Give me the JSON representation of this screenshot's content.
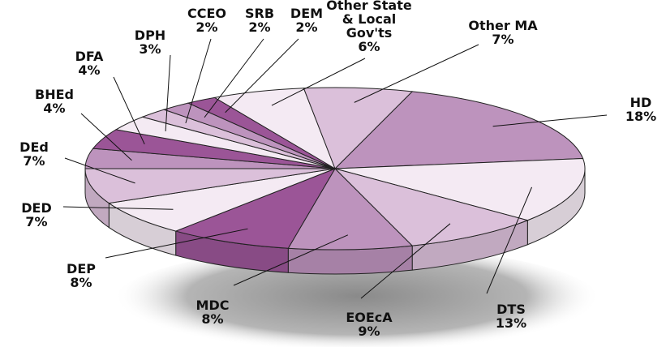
{
  "chart_data": {
    "type": "pie3d",
    "categories": [
      "HD",
      "DTS",
      "EOEcA",
      "MDC",
      "DEP",
      "DED",
      "DEd",
      "BHEd",
      "DFA",
      "DPH",
      "CCEO",
      "SRB",
      "DEM",
      "Other State & Local Gov'ts",
      "Other MA"
    ],
    "values": [
      18,
      13,
      9,
      8,
      8,
      7,
      7,
      4,
      4,
      3,
      2,
      2,
      2,
      6,
      7
    ],
    "value_labels": [
      "18%",
      "13%",
      "9%",
      "8%",
      "8%",
      "7%",
      "7%",
      "4%",
      "4%",
      "3%",
      "2%",
      "2%",
      "2%",
      "6%",
      "7%"
    ],
    "colors": [
      "#bd93bd",
      "#f4eaf3",
      "#dbc0da",
      "#bd93bd",
      "#9b5597",
      "#f4eaf3",
      "#dbc0da",
      "#bd93bd",
      "#9b5597",
      "#f4eaf3",
      "#dbc0da",
      "#bd93bd",
      "#9b5597",
      "#f4eaf3",
      "#dbc0da"
    ]
  }
}
